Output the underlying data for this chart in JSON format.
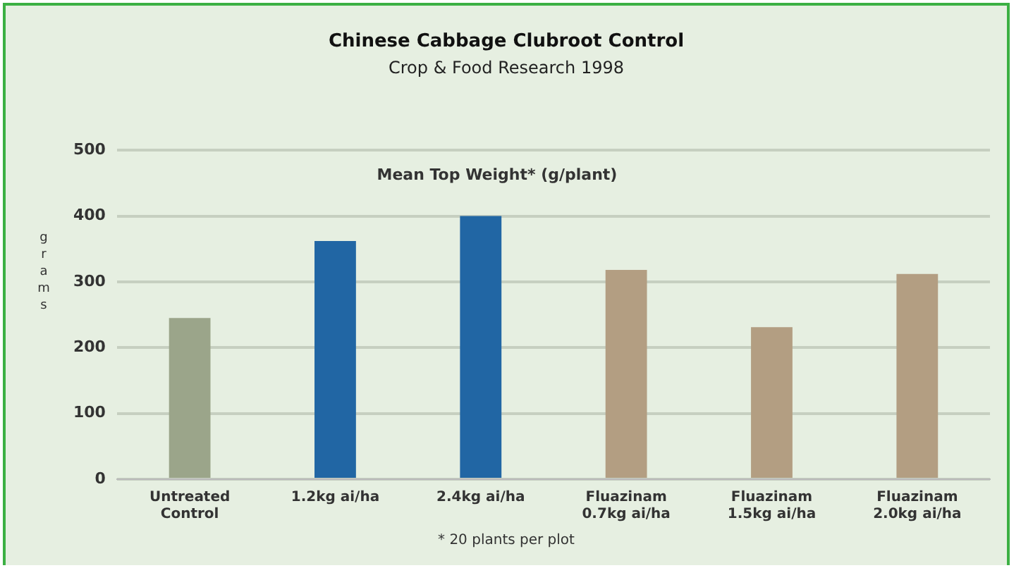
{
  "chart_data": {
    "type": "bar",
    "title": "Chinese Cabbage Clubroot Control",
    "subtitle": "Crop & Food Research 1998",
    "ylabel": "grams",
    "categories": [
      "Untreated Control",
      "1.2kg ai/ha",
      "2.4kg ai/ha",
      "Fluazinam 0.7kg ai/ha",
      "Fluazinam 1.5kg ai/ha",
      "Fluazinam 2.0kg ai/ha"
    ],
    "values": [
      245,
      362,
      400,
      318,
      231,
      312
    ],
    "colors": [
      "#9ba58a",
      "#2166a4",
      "#2166a4",
      "#b39e82",
      "#b39e82",
      "#b39e82"
    ],
    "ylim": [
      0,
      500
    ],
    "yticks": [
      0,
      100,
      200,
      300,
      400,
      500
    ],
    "grid": "y",
    "legend": false,
    "annotations": [
      "Mean Top Weight* (g/plant)",
      "* 20 plants per plot"
    ]
  }
}
